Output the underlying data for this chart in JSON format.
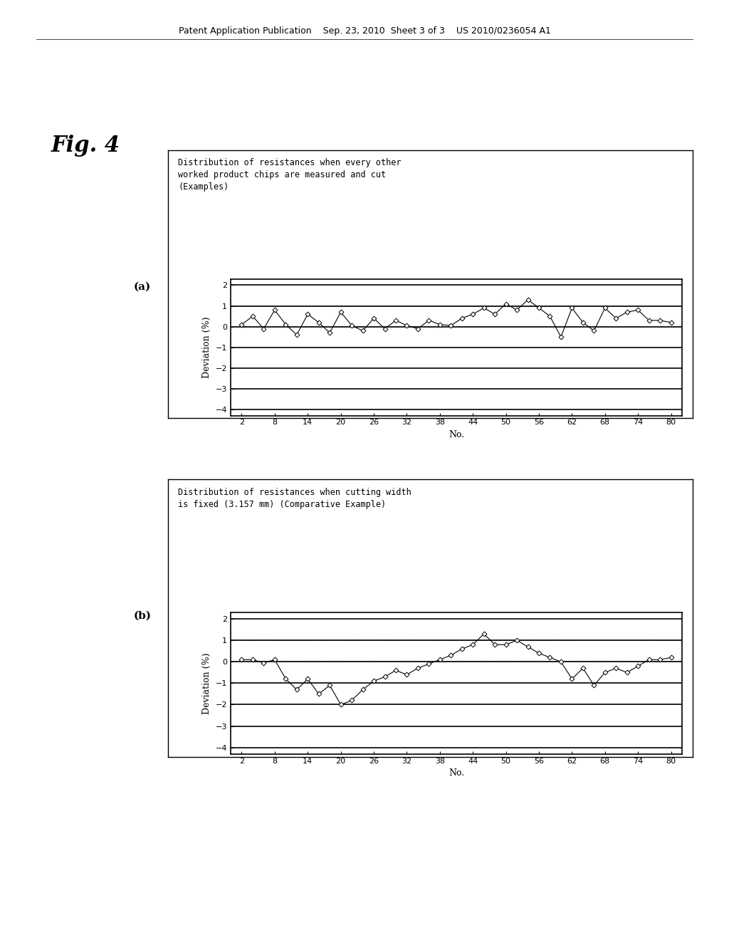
{
  "title_a": "Distribution of resistances when every other\nworked product chips are measured and cut\n(Examples)",
  "title_b": "Distribution of resistances when cutting width\nis fixed (3.157 mm) (Comparative Example)",
  "xlabel": "No.",
  "ylabel": "Deviation (%)",
  "ylim": [
    -4.3,
    2.3
  ],
  "yticks": [
    2.0,
    1.0,
    0.0,
    -1.0,
    -2.0,
    -3.0,
    -4.0
  ],
  "xticks": [
    2,
    8,
    14,
    20,
    26,
    32,
    38,
    44,
    50,
    56,
    62,
    68,
    74,
    80
  ],
  "data_a_x": [
    2,
    4,
    6,
    8,
    10,
    12,
    14,
    16,
    18,
    20,
    22,
    24,
    26,
    28,
    30,
    32,
    34,
    36,
    38,
    40,
    42,
    44,
    46,
    48,
    50,
    52,
    54,
    56,
    58,
    60,
    62,
    64,
    66,
    68,
    70,
    72,
    74,
    76,
    78,
    80
  ],
  "data_a_y": [
    0.1,
    0.5,
    -0.1,
    0.8,
    0.1,
    -0.4,
    0.6,
    0.2,
    -0.3,
    0.7,
    0.05,
    -0.2,
    0.4,
    -0.1,
    0.3,
    0.05,
    -0.1,
    0.3,
    0.1,
    0.05,
    0.4,
    0.6,
    0.9,
    0.6,
    1.1,
    0.8,
    1.3,
    0.9,
    0.5,
    -0.5,
    0.9,
    0.2,
    -0.2,
    0.9,
    0.4,
    0.7,
    0.8,
    0.3,
    0.3,
    0.2
  ],
  "data_b_x": [
    2,
    4,
    6,
    8,
    10,
    12,
    14,
    16,
    18,
    20,
    22,
    24,
    26,
    28,
    30,
    32,
    34,
    36,
    38,
    40,
    42,
    44,
    46,
    48,
    50,
    52,
    54,
    56,
    58,
    60,
    62,
    64,
    66,
    68,
    70,
    72,
    74,
    76,
    78,
    80
  ],
  "data_b_y": [
    0.1,
    0.1,
    -0.05,
    0.1,
    -0.8,
    -1.3,
    -0.8,
    -1.5,
    -1.1,
    -2.0,
    -1.8,
    -1.3,
    -0.9,
    -0.7,
    -0.4,
    -0.6,
    -0.3,
    -0.1,
    0.1,
    0.3,
    0.6,
    0.8,
    1.3,
    0.8,
    0.8,
    1.0,
    0.7,
    0.4,
    0.2,
    0.0,
    -0.8,
    -0.3,
    -1.1,
    -0.5,
    -0.3,
    -0.5,
    -0.2,
    0.1,
    0.1,
    0.2
  ],
  "background_color": "#ffffff",
  "header_text": "Patent Application Publication    Sep. 23, 2010  Sheet 3 of 3    US 2010/0236054 A1",
  "fig_title": "Fig. 4",
  "fig_label_a": "(a)",
  "fig_label_b": "(b)"
}
